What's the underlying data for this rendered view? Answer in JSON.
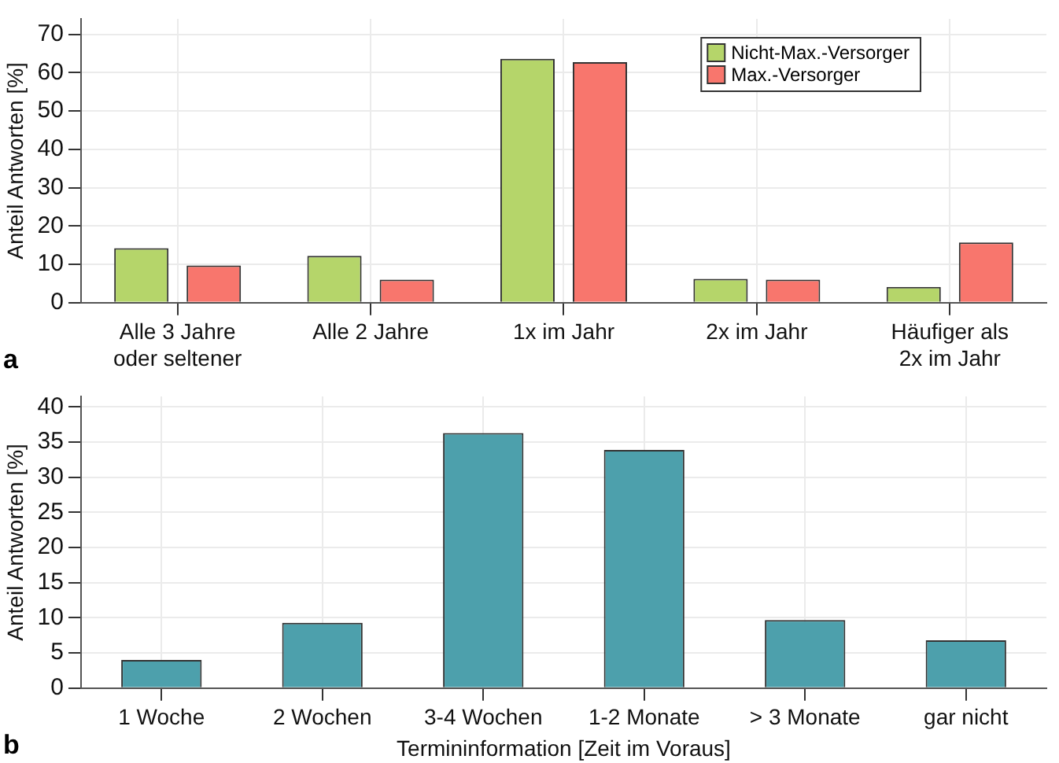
{
  "chart_data": [
    {
      "type": "bar",
      "ylabel": "Anteil Antworten [%]",
      "categories": [
        "Alle 3 Jahre\noder seltener",
        "Alle 2 Jahre",
        "1x im Jahr",
        "2x im Jahr",
        "Häufiger als\n2x im Jahr"
      ],
      "series": [
        {
          "name": "Nicht-Max.-Versorger",
          "color": "#b5d56a",
          "values": [
            14.2,
            12.2,
            63.6,
            6.2,
            4.1
          ]
        },
        {
          "name": "Max.-Versorger",
          "color": "#f8766d",
          "values": [
            9.7,
            6.0,
            62.7,
            6.0,
            15.7
          ]
        }
      ],
      "ylim": [
        0,
        74
      ],
      "yticks": [
        0,
        10,
        20,
        30,
        40,
        50,
        60,
        70
      ],
      "grid": true,
      "legend": "top right",
      "annotations": [
        "a"
      ]
    },
    {
      "type": "bar",
      "ylabel": "Anteil Antworten [%]",
      "xlabel": "Termininformation [Zeit im Voraus]",
      "categories": [
        "1 Woche",
        "2 Wochen",
        "3-4 Wochen",
        "1-2 Monate",
        "> 3 Monate",
        "gar nicht"
      ],
      "series": [
        {
          "color": "#4da0ac",
          "values": [
            4.0,
            9.3,
            36.3,
            33.9,
            9.7,
            6.8
          ]
        }
      ],
      "ylim": [
        0,
        41.5
      ],
      "yticks": [
        0,
        5,
        10,
        15,
        20,
        25,
        30,
        35,
        40
      ],
      "grid": true,
      "annotations": [
        "b"
      ]
    }
  ]
}
